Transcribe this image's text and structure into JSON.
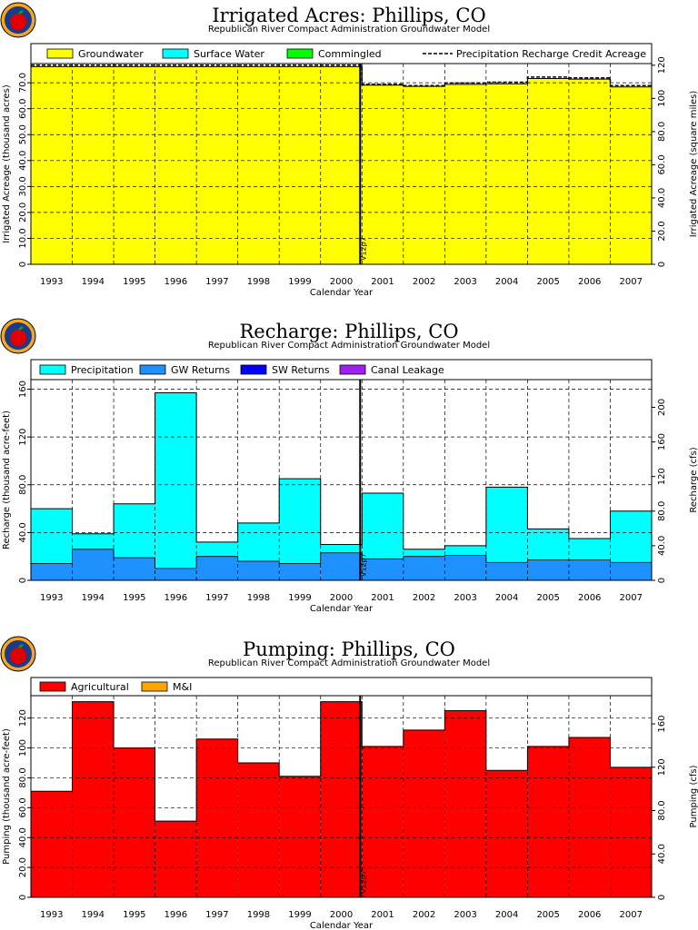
{
  "years": [
    "1993",
    "1994",
    "1995",
    "1996",
    "1997",
    "1998",
    "1999",
    "2000",
    "2001",
    "2002",
    "2003",
    "2004",
    "2005",
    "2006",
    "2007"
  ],
  "marker_label": "V12p7",
  "colors": {
    "groundwater": "#ffff00",
    "surface_water": "#00ffff",
    "commingled": "#00ff00",
    "precipitation": "#00ffff",
    "gw_returns": "#1e90ff",
    "sw_returns": "#0000ff",
    "canal_leakage": "#a020f0",
    "agricultural": "#ff0000",
    "mi": "#ffa500"
  },
  "chart_data": [
    {
      "type": "area",
      "title": "Irrigated Acres: Phillips, CO",
      "subtitle": "Republican River Compact Administration Groundwater Model",
      "xlabel": "Calendar Year",
      "ylabel": "Irrigated Acreage (thousand acres)",
      "y2label": "Irrigated Acreage (square miles)",
      "ylim": [
        0,
        77.4
      ],
      "yticks": [
        0,
        10.0,
        20.0,
        30.0,
        40.0,
        50.0,
        60.0,
        70.0
      ],
      "ytick_labels": [
        "0",
        "10.0",
        "20.0",
        "30.0",
        "40.0",
        "50.0",
        "60.0",
        "70.0"
      ],
      "y2lim": [
        0,
        121
      ],
      "y2ticks": [
        0,
        20,
        40,
        60,
        80,
        100,
        120
      ],
      "y2tick_labels": [
        "0",
        "20.0",
        "40.0",
        "60.0",
        "80.0",
        "100",
        "120"
      ],
      "legend": [
        "Groundwater",
        "Surface Water",
        "Commingled",
        "Precipitation Recharge Credit Acreage"
      ],
      "legend_position": "top",
      "grid": true,
      "series": [
        {
          "name": "Groundwater",
          "values": [
            76.2,
            76.2,
            76.2,
            76.2,
            76.2,
            76.2,
            76.2,
            76.2,
            69.1,
            68.6,
            69.4,
            69.6,
            71.6,
            71.4,
            68.4
          ]
        },
        {
          "name": "Surface Water",
          "values": [
            0,
            0,
            0,
            0,
            0,
            0,
            0,
            0,
            0,
            0,
            0,
            0,
            0,
            0,
            0
          ]
        },
        {
          "name": "Commingled",
          "values": [
            0,
            0,
            0,
            0,
            0,
            0,
            0,
            0,
            0,
            0,
            0,
            0,
            0,
            0,
            0
          ]
        },
        {
          "name": "Precipitation Recharge Credit Acreage",
          "values": [
            76.8,
            76.8,
            76.8,
            76.8,
            76.8,
            76.8,
            76.8,
            76.8,
            69.4,
            68.9,
            69.9,
            70.2,
            72.2,
            71.9,
            68.9
          ]
        }
      ]
    },
    {
      "type": "area",
      "title": "Recharge: Phillips, CO",
      "subtitle": "Republican River Compact Administration Groundwater Model",
      "xlabel": "Calendar Year",
      "ylabel": "Recharge (thousand acre-feet)",
      "y2label": "Recharge (cfs)",
      "ylim": [
        0,
        168
      ],
      "yticks": [
        0,
        40,
        80,
        120,
        160
      ],
      "ytick_labels": [
        "0",
        "40.0",
        "80.0",
        "120",
        "160"
      ],
      "y2lim": [
        0,
        232
      ],
      "y2ticks": [
        0,
        40,
        80,
        120,
        160,
        200
      ],
      "y2tick_labels": [
        "0",
        "40.0",
        "80.0",
        "120",
        "160",
        "200"
      ],
      "legend": [
        "Precipitation",
        "GW Returns",
        "SW Returns",
        "Canal Leakage"
      ],
      "legend_position": "top",
      "grid": true,
      "series": [
        {
          "name": "GW Returns",
          "values": [
            14,
            26,
            19,
            10,
            20,
            16,
            14,
            23,
            18,
            20,
            21,
            15,
            17,
            17,
            15
          ]
        },
        {
          "name": "Precipitation",
          "values": [
            46,
            13,
            45,
            147,
            12,
            32,
            71,
            7,
            55,
            6,
            8,
            63,
            26,
            18,
            43
          ]
        },
        {
          "name": "SW Returns",
          "values": [
            0,
            0,
            0,
            0,
            0,
            0,
            0,
            0,
            0,
            0,
            0,
            0,
            0,
            0,
            0
          ]
        },
        {
          "name": "Canal Leakage",
          "values": [
            0,
            0,
            0,
            0,
            0,
            0,
            0,
            0,
            0,
            0,
            0,
            0,
            0,
            0,
            0
          ]
        }
      ]
    },
    {
      "type": "area",
      "title": "Pumping: Phillips, CO",
      "subtitle": "Republican River Compact Administration Groundwater Model",
      "xlabel": "Calendar Year",
      "ylabel": "Pumping (thousand acre-feet)",
      "y2label": "Pumping (cfs)",
      "ylim": [
        0,
        135
      ],
      "yticks": [
        0,
        20,
        40,
        60,
        80,
        100,
        120
      ],
      "ytick_labels": [
        "0",
        "20.0",
        "40.0",
        "60.0",
        "80.0",
        "100",
        "120"
      ],
      "y2lim": [
        0,
        186
      ],
      "y2ticks": [
        0,
        40,
        80,
        120,
        160
      ],
      "y2tick_labels": [
        "0",
        "40.0",
        "80.0",
        "120",
        "160"
      ],
      "legend": [
        "Agricultural",
        "M&I"
      ],
      "legend_position": "top",
      "grid": true,
      "series": [
        {
          "name": "Agricultural",
          "values": [
            71,
            131,
            100,
            51,
            106,
            90,
            81,
            131,
            101,
            112,
            125,
            85,
            101,
            107,
            87
          ]
        },
        {
          "name": "M&I",
          "values": [
            0,
            0,
            0,
            0,
            0,
            0,
            0,
            0,
            0,
            0,
            0,
            0,
            0,
            0,
            0
          ]
        }
      ]
    }
  ]
}
